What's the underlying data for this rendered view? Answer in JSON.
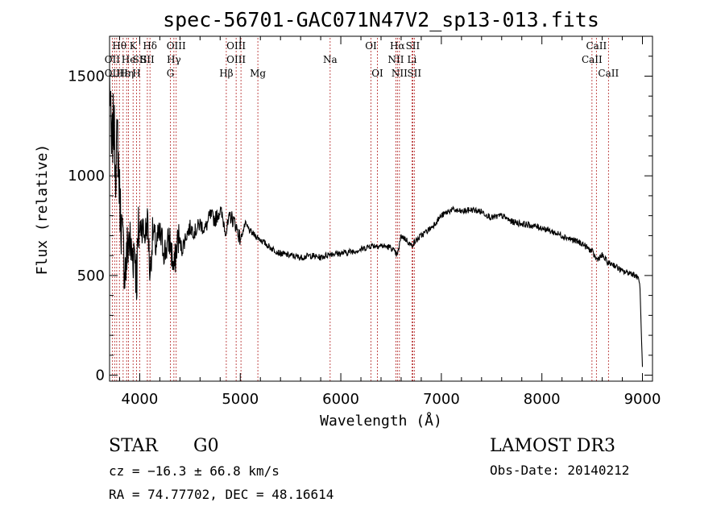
{
  "chart_data": {
    "type": "line",
    "title": "spec-56701-GAC071N47V2_sp13-013.fits",
    "xlabel": "Wavelength (Å)",
    "ylabel": "Flux (relative)",
    "xlim": [
      3700,
      9100
    ],
    "ylim": [
      -30,
      1700
    ],
    "x_ticks": [
      4000,
      5000,
      6000,
      7000,
      8000,
      9000
    ],
    "y_ticks": [
      0,
      500,
      1000,
      1500
    ],
    "line_color": "#000000",
    "marker_color": "#b22222",
    "spectrum": {
      "name": "flux",
      "x": [
        3700,
        3720,
        3740,
        3760,
        3780,
        3800,
        3830,
        3860,
        3890,
        3920,
        3950,
        3968,
        3990,
        4020,
        4050,
        4080,
        4102,
        4130,
        4160,
        4200,
        4250,
        4300,
        4340,
        4380,
        4420,
        4460,
        4500,
        4550,
        4600,
        4650,
        4700,
        4750,
        4800,
        4861,
        4900,
        4950,
        5000,
        5050,
        5100,
        5150,
        5200,
        5300,
        5400,
        5500,
        5600,
        5700,
        5800,
        5900,
        6000,
        6100,
        6200,
        6300,
        6400,
        6500,
        6563,
        6600,
        6650,
        6700,
        6800,
        6900,
        7000,
        7100,
        7200,
        7300,
        7400,
        7500,
        7600,
        7700,
        7800,
        7900,
        8000,
        8100,
        8200,
        8300,
        8400,
        8500,
        8542,
        8600,
        8662,
        8700,
        8800,
        8900,
        8960,
        8975,
        8990,
        9000
      ],
      "y": [
        1500,
        1100,
        1280,
        1050,
        1200,
        900,
        650,
        520,
        700,
        600,
        650,
        480,
        720,
        760,
        700,
        780,
        500,
        720,
        650,
        700,
        620,
        680,
        520,
        700,
        630,
        700,
        740,
        720,
        760,
        730,
        800,
        780,
        830,
        720,
        800,
        760,
        680,
        760,
        720,
        700,
        680,
        640,
        610,
        600,
        590,
        600,
        590,
        610,
        610,
        620,
        630,
        650,
        650,
        640,
        600,
        700,
        680,
        650,
        700,
        740,
        800,
        830,
        820,
        830,
        820,
        790,
        800,
        770,
        760,
        750,
        740,
        720,
        700,
        680,
        660,
        620,
        580,
        600,
        560,
        560,
        520,
        510,
        490,
        450,
        200,
        40
      ]
    },
    "line_markers": [
      {
        "label": "Hθ",
        "x": 3798,
        "row": 0
      },
      {
        "label": "OII",
        "x": 3727,
        "row": 1
      },
      {
        "label": "OII",
        "x": 3727,
        "row": 2
      },
      {
        "label": "Hε",
        "x": 3835,
        "row": 2
      },
      {
        "label": "He",
        "x": 3889,
        "row": 1
      },
      {
        "label": "Hη",
        "x": 3870,
        "row": 2
      },
      {
        "label": "K",
        "x": 3934,
        "row": 0
      },
      {
        "label": "SII",
        "x": 4000,
        "row": 1
      },
      {
        "label": "H",
        "x": 3968,
        "row": 2
      },
      {
        "label": "Hδ",
        "x": 4102,
        "row": 0
      },
      {
        "label": "SII",
        "x": 4076,
        "row": 1
      },
      {
        "label": "OIII",
        "x": 4363,
        "row": 0
      },
      {
        "label": "Hγ",
        "x": 4340,
        "row": 1
      },
      {
        "label": "G",
        "x": 4305,
        "row": 2
      },
      {
        "label": "OIII",
        "x": 4959,
        "row": 0
      },
      {
        "label": "OIII",
        "x": 4959,
        "row": 1
      },
      {
        "label": "Hβ",
        "x": 4861,
        "row": 2
      },
      {
        "label": "Mg",
        "x": 5175,
        "row": 2
      },
      {
        "label": "Na",
        "x": 5894,
        "row": 1
      },
      {
        "label": "OI",
        "x": 6300,
        "row": 0
      },
      {
        "label": "OI",
        "x": 6364,
        "row": 2
      },
      {
        "label": "Hα",
        "x": 6563,
        "row": 0
      },
      {
        "label": "SII",
        "x": 6716,
        "row": 0
      },
      {
        "label": "NII",
        "x": 6548,
        "row": 1
      },
      {
        "label": "Li",
        "x": 6708,
        "row": 1
      },
      {
        "label": "NII",
        "x": 6583,
        "row": 2
      },
      {
        "label": "SII",
        "x": 6731,
        "row": 2
      },
      {
        "label": "CaII",
        "x": 8542,
        "row": 0
      },
      {
        "label": "CaII",
        "x": 8498,
        "row": 1
      },
      {
        "label": "CaII",
        "x": 8662,
        "row": 2
      }
    ],
    "marker_lines_x": [
      3727,
      3750,
      3771,
      3798,
      3835,
      3870,
      3889,
      3934,
      3968,
      4000,
      4076,
      4102,
      4305,
      4340,
      4363,
      4861,
      4959,
      5007,
      5175,
      5894,
      6300,
      6364,
      6548,
      6563,
      6583,
      6708,
      6716,
      6731,
      8498,
      8542,
      8662
    ]
  },
  "info": {
    "class": "STAR",
    "subclass": "G0",
    "cz": "cz = −16.3 ± 66.8 km/s",
    "radec": "RA =  74.77702, DEC =  48.16614",
    "survey": "LAMOST DR3",
    "obsdate": "Obs-Date: 20140212"
  }
}
